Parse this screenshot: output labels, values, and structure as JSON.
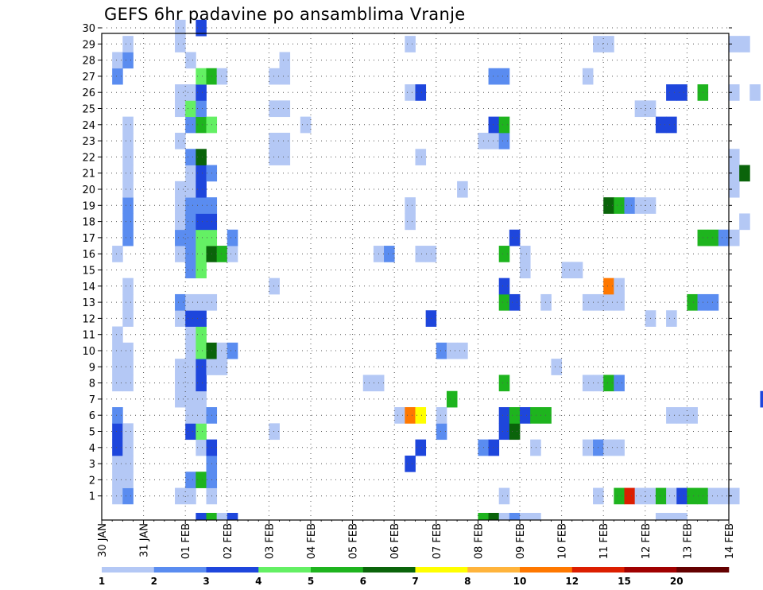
{
  "chart_data": {
    "type": "heatmap",
    "title": "GEFS 6hr padavine po ansamblima Vranje",
    "x_tick_labels": [
      "30 JAN",
      "31 JAN",
      "01 FEB",
      "02 FEB",
      "03 FEB",
      "04 FEB",
      "05 FEB",
      "06 FEB",
      "07 FEB",
      "08 FEB",
      "09 FEB",
      "10 FEB",
      "11 FEB",
      "12 FEB",
      "13 FEB",
      "14 FEB"
    ],
    "y_tick_labels": [
      "1",
      "2",
      "3",
      "4",
      "5",
      "6",
      "7",
      "8",
      "9",
      "10",
      "11",
      "12",
      "13",
      "14",
      "15",
      "16",
      "17",
      "18",
      "19",
      "20",
      "21",
      "22",
      "23",
      "24",
      "25",
      "26",
      "27",
      "28",
      "29",
      "30"
    ],
    "time_steps_per_day": 4,
    "grid": "dotted",
    "legend": {
      "position": "bottom",
      "tick_labels": [
        "1",
        "2",
        "3",
        "4",
        "5",
        "6",
        "7",
        "8",
        "10",
        "12",
        "15",
        "20"
      ],
      "colors": [
        "#b4c8f5",
        "#5a8cf0",
        "#1e46dc",
        "#64f064",
        "#1eb41e",
        "#0a640a",
        "#ffff00",
        "#ffb43c",
        "#ff7800",
        "#dc1e00",
        "#a00000",
        "#640000"
      ]
    },
    "cells": [
      [
        1,
        1,
        1
      ],
      [
        1,
        2,
        1
      ],
      [
        1,
        3,
        1
      ],
      [
        1,
        4,
        3
      ],
      [
        1,
        5,
        3
      ],
      [
        1,
        6,
        2
      ],
      [
        1,
        8,
        1
      ],
      [
        1,
        9,
        1
      ],
      [
        1,
        10,
        1
      ],
      [
        1,
        11,
        1
      ],
      [
        1,
        16,
        1
      ],
      [
        1,
        27,
        2
      ],
      [
        1,
        28,
        1
      ],
      [
        2,
        1,
        2
      ],
      [
        2,
        2,
        1
      ],
      [
        2,
        3,
        1
      ],
      [
        2,
        4,
        1
      ],
      [
        2,
        5,
        1
      ],
      [
        2,
        8,
        1
      ],
      [
        2,
        9,
        1
      ],
      [
        2,
        10,
        1
      ],
      [
        2,
        12,
        1
      ],
      [
        2,
        13,
        1
      ],
      [
        2,
        14,
        1
      ],
      [
        2,
        17,
        2
      ],
      [
        2,
        18,
        2
      ],
      [
        2,
        19,
        2
      ],
      [
        2,
        20,
        1
      ],
      [
        2,
        21,
        1
      ],
      [
        2,
        22,
        1
      ],
      [
        2,
        23,
        1
      ],
      [
        2,
        24,
        1
      ],
      [
        2,
        28,
        2
      ],
      [
        2,
        29,
        1
      ],
      [
        7,
        1,
        1
      ],
      [
        7,
        7,
        1
      ],
      [
        7,
        8,
        1
      ],
      [
        7,
        9,
        1
      ],
      [
        7,
        12,
        1
      ],
      [
        7,
        13,
        2
      ],
      [
        7,
        16,
        1
      ],
      [
        7,
        17,
        2
      ],
      [
        7,
        18,
        1
      ],
      [
        7,
        19,
        1
      ],
      [
        7,
        20,
        1
      ],
      [
        7,
        23,
        1
      ],
      [
        7,
        25,
        1
      ],
      [
        7,
        26,
        1
      ],
      [
        7,
        29,
        1
      ],
      [
        7,
        30,
        1
      ],
      [
        8,
        1,
        1
      ],
      [
        8,
        2,
        2
      ],
      [
        8,
        5,
        3
      ],
      [
        8,
        6,
        1
      ],
      [
        8,
        7,
        1
      ],
      [
        8,
        8,
        1
      ],
      [
        8,
        9,
        1
      ],
      [
        8,
        10,
        1
      ],
      [
        8,
        11,
        1
      ],
      [
        8,
        12,
        3
      ],
      [
        8,
        13,
        1
      ],
      [
        8,
        15,
        2
      ],
      [
        8,
        16,
        2
      ],
      [
        8,
        17,
        2
      ],
      [
        8,
        18,
        2
      ],
      [
        8,
        19,
        2
      ],
      [
        8,
        20,
        1
      ],
      [
        8,
        21,
        1
      ],
      [
        8,
        22,
        2
      ],
      [
        8,
        24,
        2
      ],
      [
        8,
        25,
        4
      ],
      [
        8,
        26,
        1
      ],
      [
        8,
        28,
        1
      ],
      [
        9,
        2,
        5
      ],
      [
        9,
        4,
        1
      ],
      [
        9,
        5,
        4
      ],
      [
        9,
        6,
        1
      ],
      [
        9,
        7,
        1
      ],
      [
        9,
        8,
        3
      ],
      [
        9,
        9,
        3
      ],
      [
        9,
        10,
        4
      ],
      [
        9,
        11,
        4
      ],
      [
        9,
        12,
        3
      ],
      [
        9,
        13,
        1
      ],
      [
        9,
        15,
        4
      ],
      [
        9,
        16,
        4
      ],
      [
        9,
        17,
        4
      ],
      [
        9,
        18,
        3
      ],
      [
        9,
        19,
        2
      ],
      [
        9,
        20,
        3
      ],
      [
        9,
        21,
        3
      ],
      [
        9,
        22,
        6
      ],
      [
        9,
        24,
        5
      ],
      [
        9,
        25,
        2
      ],
      [
        9,
        26,
        3
      ],
      [
        9,
        27,
        4
      ],
      [
        9,
        30,
        3
      ],
      [
        10,
        1,
        1
      ],
      [
        10,
        2,
        2
      ],
      [
        10,
        3,
        2
      ],
      [
        10,
        4,
        3
      ],
      [
        10,
        6,
        2
      ],
      [
        10,
        9,
        1
      ],
      [
        10,
        10,
        6
      ],
      [
        10,
        13,
        1
      ],
      [
        10,
        16,
        6
      ],
      [
        10,
        17,
        4
      ],
      [
        10,
        18,
        3
      ],
      [
        10,
        19,
        2
      ],
      [
        10,
        21,
        2
      ],
      [
        10,
        24,
        4
      ],
      [
        10,
        27,
        5
      ],
      [
        11,
        9,
        1
      ],
      [
        11,
        10,
        1
      ],
      [
        11,
        16,
        5
      ],
      [
        11,
        27,
        1
      ],
      [
        12,
        10,
        2
      ],
      [
        12,
        16,
        1
      ],
      [
        12,
        17,
        2
      ],
      [
        16,
        5,
        1
      ],
      [
        16,
        14,
        1
      ],
      [
        16,
        22,
        1
      ],
      [
        16,
        23,
        1
      ],
      [
        16,
        25,
        1
      ],
      [
        16,
        27,
        1
      ],
      [
        17,
        22,
        1
      ],
      [
        17,
        23,
        1
      ],
      [
        17,
        25,
        1
      ],
      [
        17,
        27,
        1
      ],
      [
        17,
        28,
        1
      ],
      [
        19,
        24,
        1
      ],
      [
        25,
        8,
        1
      ],
      [
        26,
        8,
        1
      ],
      [
        26,
        16,
        1
      ],
      [
        27,
        16,
        2
      ],
      [
        28,
        6,
        1
      ],
      [
        29,
        3,
        3
      ],
      [
        29,
        6,
        9
      ],
      [
        29,
        18,
        1
      ],
      [
        29,
        19,
        1
      ],
      [
        29,
        26,
        1
      ],
      [
        29,
        29,
        1
      ],
      [
        30,
        4,
        3
      ],
      [
        30,
        6,
        7
      ],
      [
        30,
        16,
        1
      ],
      [
        30,
        22,
        1
      ],
      [
        30,
        26,
        3
      ],
      [
        31,
        12,
        3
      ],
      [
        31,
        16,
        1
      ],
      [
        32,
        5,
        2
      ],
      [
        32,
        6,
        1
      ],
      [
        32,
        10,
        2
      ],
      [
        33,
        7,
        5
      ],
      [
        33,
        10,
        1
      ],
      [
        34,
        10,
        1
      ],
      [
        34,
        20,
        1
      ],
      [
        36,
        4,
        2
      ],
      [
        36,
        23,
        1
      ],
      [
        37,
        4,
        3
      ],
      [
        37,
        23,
        1
      ],
      [
        37,
        24,
        3
      ],
      [
        37,
        27,
        2
      ],
      [
        38,
        1,
        1
      ],
      [
        38,
        5,
        3
      ],
      [
        38,
        6,
        3
      ],
      [
        38,
        8,
        5
      ],
      [
        38,
        13,
        5
      ],
      [
        38,
        14,
        3
      ],
      [
        38,
        16,
        5
      ],
      [
        38,
        23,
        2
      ],
      [
        38,
        24,
        5
      ],
      [
        38,
        27,
        2
      ],
      [
        39,
        5,
        6
      ],
      [
        39,
        6,
        5
      ],
      [
        39,
        13,
        3
      ],
      [
        39,
        17,
        3
      ],
      [
        40,
        6,
        3
      ],
      [
        40,
        15,
        1
      ],
      [
        40,
        16,
        1
      ],
      [
        41,
        4,
        1
      ],
      [
        41,
        6,
        5
      ],
      [
        42,
        6,
        5
      ],
      [
        42,
        13,
        1
      ],
      [
        43,
        9,
        1
      ],
      [
        44,
        15,
        1
      ],
      [
        45,
        15,
        1
      ],
      [
        46,
        4,
        1
      ],
      [
        46,
        8,
        1
      ],
      [
        46,
        13,
        1
      ],
      [
        46,
        27,
        1
      ],
      [
        47,
        1,
        1
      ],
      [
        47,
        4,
        2
      ],
      [
        47,
        8,
        1
      ],
      [
        47,
        13,
        1
      ],
      [
        47,
        29,
        1
      ],
      [
        48,
        4,
        1
      ],
      [
        48,
        8,
        5
      ],
      [
        48,
        13,
        1
      ],
      [
        48,
        14,
        9
      ],
      [
        48,
        19,
        6
      ],
      [
        48,
        29,
        1
      ],
      [
        49,
        1,
        5
      ],
      [
        49,
        4,
        1
      ],
      [
        49,
        8,
        2
      ],
      [
        49,
        13,
        1
      ],
      [
        49,
        14,
        1
      ],
      [
        49,
        19,
        5
      ],
      [
        50,
        1,
        10
      ],
      [
        50,
        19,
        2
      ],
      [
        51,
        1,
        1
      ],
      [
        51,
        19,
        1
      ],
      [
        51,
        25,
        1
      ],
      [
        52,
        1,
        1
      ],
      [
        52,
        12,
        1
      ],
      [
        52,
        19,
        1
      ],
      [
        52,
        25,
        1
      ],
      [
        53,
        1,
        5
      ],
      [
        53,
        24,
        3
      ],
      [
        54,
        1,
        1
      ],
      [
        54,
        6,
        1
      ],
      [
        54,
        12,
        1
      ],
      [
        54,
        24,
        3
      ],
      [
        54,
        26,
        3
      ],
      [
        55,
        1,
        3
      ],
      [
        55,
        6,
        1
      ],
      [
        55,
        26,
        3
      ],
      [
        56,
        1,
        5
      ],
      [
        56,
        6,
        1
      ],
      [
        56,
        13,
        5
      ],
      [
        57,
        1,
        5
      ],
      [
        57,
        13,
        2
      ],
      [
        57,
        17,
        5
      ],
      [
        57,
        26,
        5
      ],
      [
        58,
        1,
        1
      ],
      [
        58,
        13,
        2
      ],
      [
        58,
        17,
        5
      ],
      [
        59,
        1,
        1
      ],
      [
        59,
        17,
        2
      ],
      [
        60,
        1,
        1
      ],
      [
        60,
        17,
        1
      ],
      [
        60,
        20,
        1
      ],
      [
        60,
        21,
        1
      ],
      [
        60,
        22,
        1
      ],
      [
        60,
        26,
        1
      ],
      [
        60,
        29,
        1
      ],
      [
        61,
        18,
        1
      ],
      [
        61,
        21,
        6
      ],
      [
        61,
        29,
        1
      ],
      [
        62,
        26,
        1
      ],
      [
        63,
        7,
        3
      ],
      [
        64,
        2,
        2
      ],
      [
        64,
        18,
        1
      ],
      [
        64,
        26,
        2
      ]
    ],
    "row0_cells": [
      [
        9,
        3
      ],
      [
        10,
        5
      ],
      [
        11,
        1
      ],
      [
        12,
        3
      ],
      [
        36,
        5
      ],
      [
        37,
        6
      ],
      [
        38,
        1
      ],
      [
        39,
        2
      ],
      [
        40,
        1
      ],
      [
        41,
        1
      ],
      [
        53,
        1
      ],
      [
        54,
        1
      ],
      [
        55,
        1
      ]
    ]
  }
}
